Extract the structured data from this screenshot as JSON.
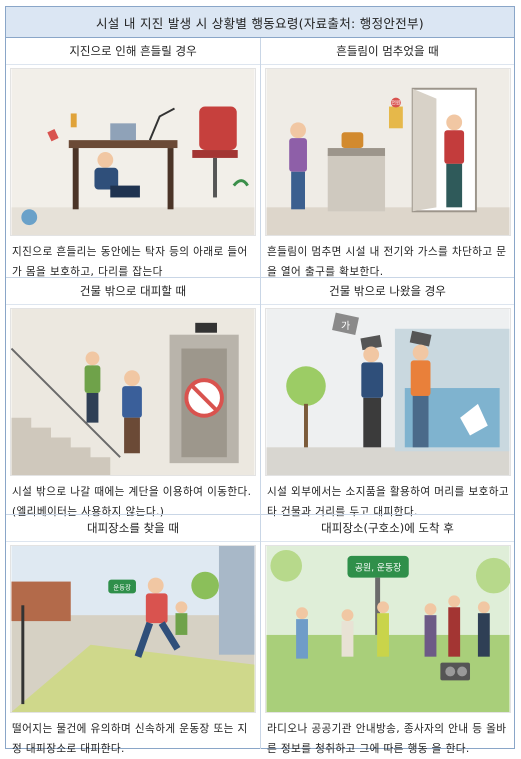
{
  "title": "시설 내 지진 발생 시 상황별 행동요령(자료출처: 행정안전부)",
  "panels": [
    {
      "heading": "지진으로 인해 흔들릴 경우",
      "caption": "지진으로 흔들리는 동안에는 탁자 등의 아래로 들어가 몸을 보호하고, 다리를 잡는다"
    },
    {
      "heading": "흔들림이 멈추었을 때",
      "caption": "흔들림이 멈추면 시설 내 전기와 가스를 차단하고 문을 열어 출구를 확보한다.",
      "illustration_label": "전원"
    },
    {
      "heading": "건물 밖으로 대피할 때",
      "caption": "시설 밖으로 나갈 때에는 계단을 이용하여 이동한다. (엘리베이터는 사용하지 않는다.)"
    },
    {
      "heading": "건물 밖으로 나왔을 경우",
      "caption": "시설 외부에서는 소지품을 활용하여 머리를 보호하고 타 건물과 거리를 두고 대피한다.",
      "illustration_label": "가"
    },
    {
      "heading": "대피장소를 찾을 때",
      "caption": "떨어지는 물건에 유의하며 신속하게 운동장 또는 지정 대피장소로 대피한다.",
      "illustration_label": "운동장"
    },
    {
      "heading": "대피장소(구호소)에 도착 후",
      "caption": "라디오나 공공기관 안내방송, 종사자의 안내 등 올바른 정보를 청취하고 그에 따른 행동 을 한다.",
      "illustration_label": "공원, 운동장"
    }
  ]
}
